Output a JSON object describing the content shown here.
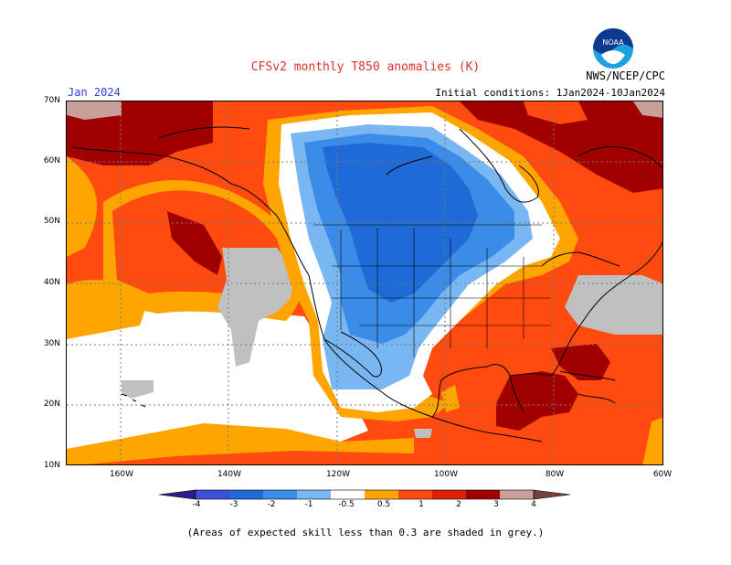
{
  "header": {
    "title": "CFSv2 monthly T850 anomalies (K)",
    "month": "Jan 2024",
    "agency": "NWS/NCEP/CPC",
    "initial_conditions": "Initial conditions: 1Jan2024-10Jan2024",
    "logo_text": "NOAA"
  },
  "map": {
    "lat_labels": [
      "70N",
      "60N",
      "50N",
      "40N",
      "30N",
      "20N",
      "10N"
    ],
    "lon_labels": [
      "160W",
      "140W",
      "120W",
      "100W",
      "80W",
      "60W"
    ]
  },
  "legend": {
    "labels": [
      "-4",
      "-3",
      "-2",
      "-1",
      "-0.5",
      "0.5",
      "1",
      "2",
      "3",
      "4"
    ],
    "colors": [
      "#2a1e8c",
      "#3b4fd9",
      "#1e6ad6",
      "#3b8be8",
      "#79b7f2",
      "#ffffff",
      "#ffa500",
      "#ff4a10",
      "#dc2000",
      "#a00000",
      "#c8a097",
      "#7a4040"
    ]
  },
  "footnote": "(Areas of expected skill less than 0.3 are shaded in grey.)"
}
